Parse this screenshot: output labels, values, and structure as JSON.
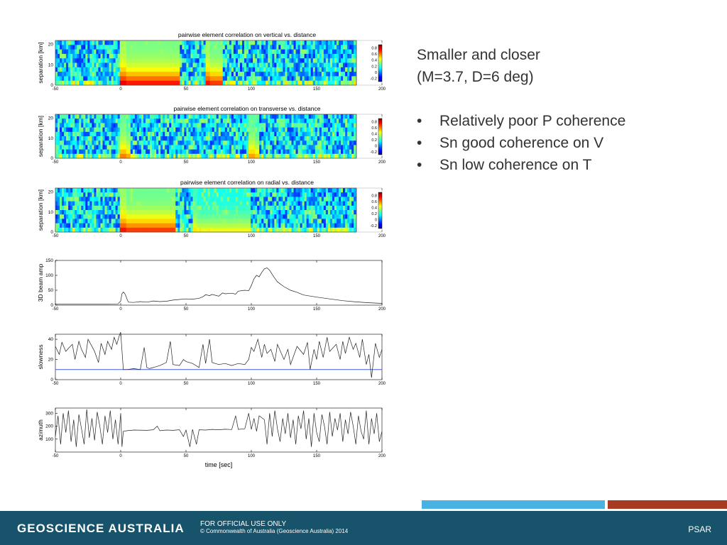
{
  "slide": {
    "heading_line1": "Smaller and closer",
    "heading_line2": "(M=3.7, D=6 deg)",
    "bullets": [
      "Relatively poor P coherence",
      "Sn good coherence on V",
      "Sn low coherence on T"
    ],
    "bullet_glyph": "•"
  },
  "footer": {
    "brand": "GEOSCIENCE AUSTRALIA",
    "official": "FOR OFFICIAL USE ONLY",
    "copyright": "© Commonwealth of Australia (Geoscience Australia) 2014",
    "tag": "PSAR",
    "background": "#17536a",
    "accent_blue": "#48b3e2",
    "accent_red": "#a83a22"
  },
  "chart_data": [
    {
      "type": "heatmap",
      "title": "pairwise element correlation on vertical vs. distance",
      "ylabel": "separation [km]",
      "xlabel": "",
      "xlim": [
        -50,
        200
      ],
      "ylim": [
        0,
        22
      ],
      "xticks": [
        -50,
        0,
        50,
        100,
        150,
        200
      ],
      "yticks": [
        0,
        10,
        20
      ],
      "colorbar": {
        "ticks": [
          0.8,
          0.6,
          0.4,
          0.2,
          0,
          -0.2
        ],
        "range": [
          -0.3,
          0.9
        ],
        "colormap": "jet"
      },
      "high_coherence_bands": [
        {
          "time": [
            0,
            45
          ],
          "level": 0.85
        },
        {
          "time": [
            65,
            78
          ],
          "level": 0.8
        }
      ]
    },
    {
      "type": "heatmap",
      "title": "pairwise element correlation on transverse vs. distance",
      "ylabel": "separation [km]",
      "xlabel": "",
      "xlim": [
        -50,
        200
      ],
      "ylim": [
        0,
        22
      ],
      "xticks": [
        -50,
        0,
        50,
        100,
        150,
        200
      ],
      "yticks": [
        0,
        10,
        20
      ],
      "colorbar": {
        "ticks": [
          0.8,
          0.6,
          0.4,
          0.2,
          0,
          -0.2
        ],
        "range": [
          -0.3,
          0.9
        ],
        "colormap": "jet"
      },
      "high_coherence_bands": [
        {
          "time": [
            0,
            8
          ],
          "level": 0.65
        },
        {
          "time": [
            98,
            106
          ],
          "level": 0.6
        }
      ]
    },
    {
      "type": "heatmap",
      "title": "pairwise element correlation on radial vs. distance",
      "ylabel": "separation [km]",
      "xlabel": "",
      "xlim": [
        -50,
        200
      ],
      "ylim": [
        0,
        22
      ],
      "xticks": [
        -50,
        0,
        50,
        100,
        150,
        200
      ],
      "yticks": [
        0,
        10,
        20
      ],
      "colorbar": {
        "ticks": [
          0.8,
          0.6,
          0.4,
          0.2,
          0,
          -0.2
        ],
        "range": [
          -0.3,
          0.9
        ],
        "colormap": "jet"
      },
      "high_coherence_bands": [
        {
          "time": [
            0,
            42
          ],
          "level": 0.8
        },
        {
          "time": [
            55,
            100
          ],
          "level": 0.5
        }
      ]
    },
    {
      "type": "line",
      "title": "",
      "ylabel": "3D beam amp",
      "xlabel": "",
      "xlim": [
        -50,
        200
      ],
      "ylim": [
        0,
        150
      ],
      "xticks": [
        -50,
        0,
        50,
        100,
        150,
        200
      ],
      "yticks": [
        0,
        50,
        100,
        150
      ],
      "series": [
        {
          "x": [
            -50,
            -20,
            -2,
            0,
            1,
            2,
            3,
            4,
            5,
            6,
            10,
            15,
            20,
            25,
            30,
            35,
            40,
            45,
            50,
            55,
            60,
            63,
            65,
            68,
            70,
            75,
            78,
            80,
            85,
            88,
            90,
            95,
            98,
            100,
            102,
            104,
            106,
            108,
            110,
            112,
            114,
            116,
            118,
            120,
            125,
            130,
            135,
            140,
            150,
            160,
            170,
            180,
            190,
            200
          ],
          "y": [
            3,
            3,
            4,
            14,
            38,
            44,
            40,
            30,
            18,
            10,
            9,
            12,
            10,
            14,
            12,
            13,
            17,
            19,
            21,
            20,
            23,
            28,
            35,
            32,
            36,
            30,
            41,
            38,
            40,
            37,
            47,
            50,
            48,
            66,
            88,
            100,
            95,
            110,
            122,
            125,
            117,
            103,
            90,
            78,
            62,
            50,
            43,
            34,
            27,
            21,
            15,
            11,
            8,
            6
          ]
        }
      ]
    },
    {
      "type": "line",
      "title": "",
      "ylabel": "slowness",
      "xlabel": "",
      "xlim": [
        -50,
        200
      ],
      "ylim": [
        0,
        45
      ],
      "xticks": [
        -50,
        0,
        50,
        100,
        150,
        200
      ],
      "yticks": [
        0,
        20,
        40
      ],
      "reference_line": {
        "y": 10,
        "color": "#3f5fe0"
      },
      "series": [
        {
          "x": [
            -50,
            -47,
            -45,
            -42,
            -40,
            -37,
            -35,
            -32,
            -30,
            -27,
            -25,
            -22,
            -20,
            -17,
            -15,
            -12,
            -10,
            -7,
            -5,
            -3,
            -1,
            0,
            2,
            5,
            10,
            15,
            18,
            20,
            22,
            25,
            30,
            35,
            38,
            40,
            45,
            48,
            50,
            55,
            60,
            63,
            65,
            68,
            70,
            75,
            80,
            85,
            90,
            95,
            98,
            100,
            102,
            105,
            108,
            110,
            112,
            115,
            118,
            120,
            125,
            128,
            130,
            135,
            140,
            143,
            145,
            148,
            150,
            152,
            155,
            158,
            160,
            165,
            168,
            170,
            172,
            175,
            178,
            180,
            183,
            185,
            188,
            190,
            192,
            195,
            198,
            200
          ],
          "y": [
            33,
            25,
            37,
            28,
            31,
            35,
            20,
            38,
            30,
            22,
            40,
            33,
            28,
            17,
            36,
            25,
            38,
            30,
            42,
            35,
            44,
            47,
            10,
            10,
            11,
            10,
            32,
            12,
            11,
            12,
            14,
            17,
            38,
            15,
            14,
            20,
            18,
            16,
            12,
            35,
            16,
            40,
            17,
            15,
            16,
            14,
            16,
            15,
            20,
            32,
            28,
            40,
            22,
            35,
            26,
            30,
            18,
            35,
            20,
            30,
            15,
            33,
            25,
            37,
            10,
            30,
            20,
            38,
            22,
            42,
            28,
            35,
            20,
            38,
            26,
            42,
            30,
            36,
            22,
            40,
            15,
            25,
            2,
            36,
            22,
            30
          ]
        }
      ]
    },
    {
      "type": "line",
      "title": "",
      "ylabel": "azimuth",
      "xlabel": "time [sec]",
      "xlim": [
        -50,
        200
      ],
      "ylim": [
        0,
        340
      ],
      "xticks": [
        -50,
        0,
        50,
        100,
        150,
        200
      ],
      "yticks": [
        100,
        200,
        300
      ],
      "series": [
        {
          "x": [
            -50,
            -48,
            -46,
            -44,
            -42,
            -40,
            -38,
            -36,
            -34,
            -32,
            -30,
            -28,
            -26,
            -24,
            -22,
            -20,
            -18,
            -16,
            -14,
            -12,
            -10,
            -8,
            -6,
            -4,
            -2,
            0,
            1,
            2,
            5,
            10,
            20,
            25,
            28,
            30,
            35,
            40,
            45,
            48,
            50,
            53,
            55,
            58,
            60,
            65,
            70,
            75,
            80,
            85,
            88,
            90,
            95,
            98,
            100,
            102,
            104,
            106,
            110,
            112,
            114,
            116,
            118,
            120,
            122,
            124,
            126,
            128,
            130,
            132,
            134,
            136,
            138,
            140,
            142,
            144,
            146,
            148,
            150,
            152,
            154,
            156,
            158,
            160,
            162,
            164,
            166,
            168,
            170,
            172,
            174,
            176,
            178,
            180,
            182,
            184,
            186,
            188,
            190,
            192,
            194,
            196,
            198,
            200
          ],
          "y": [
            120,
            280,
            60,
            300,
            150,
            320,
            80,
            250,
            40,
            290,
            180,
            60,
            330,
            110,
            260,
            90,
            310,
            200,
            60,
            280,
            150,
            320,
            100,
            250,
            60,
            300,
            40,
            160,
            165,
            170,
            168,
            172,
            200,
            165,
            170,
            168,
            172,
            120,
            170,
            40,
            175,
            60,
            172,
            170,
            175,
            172,
            176,
            174,
            280,
            175,
            180,
            300,
            175,
            260,
            160,
            280,
            250,
            60,
            300,
            120,
            320,
            180,
            80,
            260,
            140,
            300,
            110,
            250,
            60,
            280,
            180,
            320,
            100,
            260,
            40,
            300,
            150,
            80,
            290,
            200,
            60,
            310,
            120,
            260,
            170,
            300,
            80,
            250,
            140,
            310,
            200,
            60,
            280,
            160,
            100,
            320,
            60,
            260,
            140,
            300,
            80,
            160
          ]
        }
      ]
    }
  ]
}
